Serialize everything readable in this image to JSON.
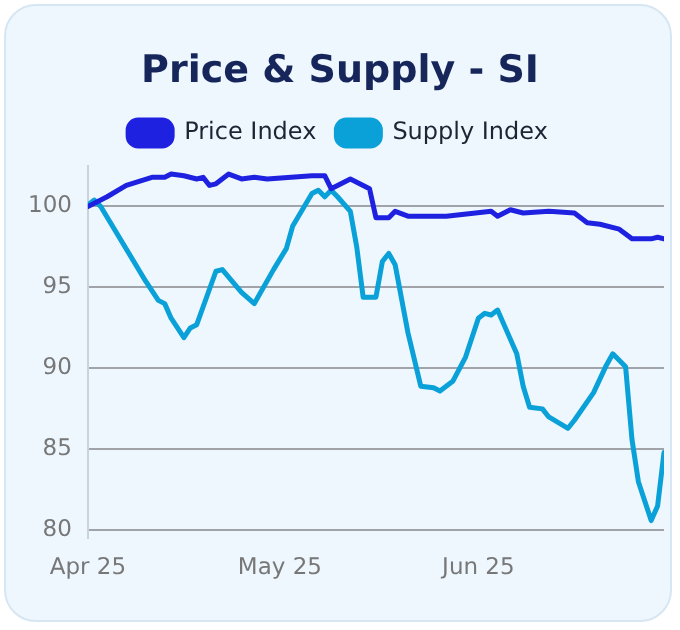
{
  "chart_data": {
    "type": "line",
    "title": "Price & Supply - SI",
    "legend": "top",
    "grid": "y",
    "marker": "none",
    "line_style": "solid",
    "xlim": [
      "2025-04-01",
      "2025-06-30"
    ],
    "xticks": [
      {
        "value": "2025-04-01",
        "label": "Apr 25"
      },
      {
        "value": "2025-05-01",
        "label": "May 25"
      },
      {
        "value": "2025-06-01",
        "label": "Jun 25"
      }
    ],
    "ylim": [
      79.5,
      102.5
    ],
    "yticks": [
      80,
      85,
      90,
      95,
      100
    ],
    "series": [
      {
        "name": "Price Index",
        "color": "#1e22e0",
        "x": [
          "2025-04-01",
          "2025-04-04",
          "2025-04-07",
          "2025-04-11",
          "2025-04-13",
          "2025-04-14",
          "2025-04-16",
          "2025-04-18",
          "2025-04-19",
          "2025-04-20",
          "2025-04-21",
          "2025-04-23",
          "2025-04-25",
          "2025-04-27",
          "2025-04-29",
          "2025-05-06",
          "2025-05-08",
          "2025-05-09",
          "2025-05-10",
          "2025-05-12",
          "2025-05-15",
          "2025-05-16",
          "2025-05-18",
          "2025-05-19",
          "2025-05-21",
          "2025-05-27",
          "2025-06-03",
          "2025-06-04",
          "2025-06-06",
          "2025-06-08",
          "2025-06-12",
          "2025-06-16",
          "2025-06-18",
          "2025-06-20",
          "2025-06-23",
          "2025-06-25",
          "2025-06-28",
          "2025-06-29",
          "2025-06-30"
        ],
        "values": [
          100,
          100.6,
          101.3,
          101.8,
          101.8,
          102,
          101.9,
          101.7,
          101.8,
          101.3,
          101.4,
          102,
          101.7,
          101.8,
          101.7,
          101.9,
          101.9,
          101.1,
          101.3,
          101.7,
          101.1,
          99.3,
          99.3,
          99.7,
          99.4,
          99.4,
          99.7,
          99.4,
          99.8,
          99.6,
          99.7,
          99.6,
          99,
          98.9,
          98.6,
          98,
          98,
          98.1,
          98
        ]
      },
      {
        "name": "Supply Index",
        "color": "#0aa0d8",
        "x": [
          "2025-04-01",
          "2025-04-02",
          "2025-04-03",
          "2025-04-10",
          "2025-04-12",
          "2025-04-13",
          "2025-04-14",
          "2025-04-16",
          "2025-04-17",
          "2025-04-18",
          "2025-04-21",
          "2025-04-22",
          "2025-04-25",
          "2025-04-27",
          "2025-04-30",
          "2025-05-02",
          "2025-05-03",
          "2025-05-06",
          "2025-05-07",
          "2025-05-08",
          "2025-05-09",
          "2025-05-10",
          "2025-05-12",
          "2025-05-13",
          "2025-05-14",
          "2025-05-16",
          "2025-05-17",
          "2025-05-18",
          "2025-05-19",
          "2025-05-21",
          "2025-05-23",
          "2025-05-25",
          "2025-05-26",
          "2025-05-28",
          "2025-05-30",
          "2025-06-01",
          "2025-06-02",
          "2025-06-03",
          "2025-06-04",
          "2025-06-07",
          "2025-06-08",
          "2025-06-09",
          "2025-06-11",
          "2025-06-12",
          "2025-06-15",
          "2025-06-16",
          "2025-06-19",
          "2025-06-21",
          "2025-06-22",
          "2025-06-24",
          "2025-06-25",
          "2025-06-26",
          "2025-06-28",
          "2025-06-29",
          "2025-06-30"
        ],
        "values": [
          100.1,
          100.4,
          100,
          95.4,
          94.2,
          94,
          93.1,
          91.9,
          92.5,
          92.7,
          96,
          96.1,
          94.7,
          94,
          96.1,
          97.4,
          98.8,
          100.8,
          101,
          100.6,
          101,
          100.6,
          99.7,
          97.5,
          94.4,
          94.4,
          96.6,
          97.1,
          96.4,
          92.2,
          88.9,
          88.8,
          88.6,
          89.2,
          90.7,
          93.1,
          93.4,
          93.3,
          93.6,
          90.9,
          88.9,
          87.6,
          87.5,
          87,
          86.3,
          86.8,
          88.5,
          90.2,
          90.9,
          90.1,
          85.6,
          83,
          80.6,
          81.5,
          84.8
        ]
      }
    ]
  }
}
